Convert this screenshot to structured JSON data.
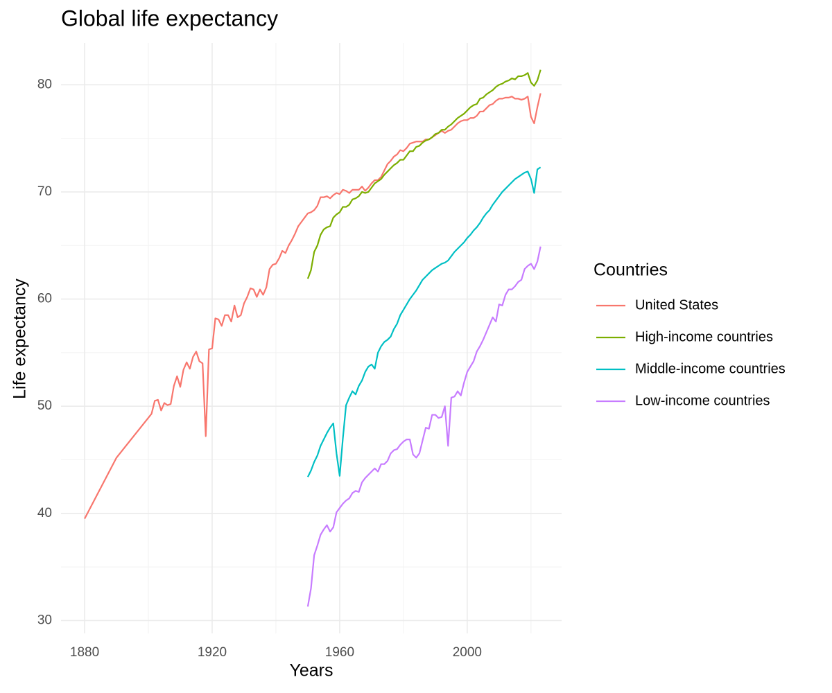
{
  "chart_data": {
    "type": "line",
    "title": "Global life expectancy",
    "x_label": "Years",
    "y_label": "Life expectancy",
    "legend_title": "Countries",
    "legend_position": "right",
    "grid": true,
    "xlim": [
      1872.6,
      2029.6
    ],
    "xticks": [
      1880,
      1920,
      1960,
      2000
    ],
    "x_minor_grid": [
      1900,
      1940,
      1980,
      2020
    ],
    "ylim": [
      28.8,
      83.9
    ],
    "yticks": [
      30,
      40,
      50,
      60,
      70,
      80
    ],
    "y_minor_grid": [
      35,
      45,
      55,
      65,
      75
    ],
    "series": [
      {
        "name": "United States",
        "color": "#F8766D",
        "x": [
          1880,
          1890,
          1901,
          1902,
          1903,
          1904,
          1905,
          1906,
          1907,
          1908,
          1909,
          1910,
          1911,
          1912,
          1913,
          1914,
          1915,
          1916,
          1917,
          1918,
          1919,
          1920,
          1921,
          1922,
          1923,
          1924,
          1925,
          1926,
          1927,
          1928,
          1929,
          1930,
          1931,
          1932,
          1933,
          1934,
          1935,
          1936,
          1937,
          1938,
          1939,
          1940,
          1941,
          1942,
          1943,
          1944,
          1945,
          1946,
          1947,
          1948,
          1949,
          1950,
          1951,
          1952,
          1953,
          1954,
          1955,
          1956,
          1957,
          1958,
          1959,
          1960,
          1961,
          1962,
          1963,
          1964,
          1965,
          1966,
          1967,
          1968,
          1969,
          1970,
          1971,
          1972,
          1973,
          1974,
          1975,
          1976,
          1977,
          1978,
          1979,
          1980,
          1981,
          1982,
          1983,
          1984,
          1985,
          1986,
          1987,
          1988,
          1989,
          1990,
          1991,
          1992,
          1993,
          1994,
          1995,
          1996,
          1997,
          1998,
          1999,
          2000,
          2001,
          2002,
          2003,
          2004,
          2005,
          2006,
          2007,
          2008,
          2009,
          2010,
          2011,
          2012,
          2013,
          2014,
          2015,
          2016,
          2017,
          2018,
          2019,
          2020,
          2021,
          2022,
          2023
        ],
        "values": [
          39.5,
          45.2,
          49.3,
          50.5,
          50.6,
          49.6,
          50.3,
          50.1,
          50.2,
          51.9,
          52.8,
          51.8,
          53.4,
          54.1,
          53.5,
          54.6,
          55.1,
          54.2,
          54.0,
          47.2,
          55.3,
          55.4,
          58.2,
          58.1,
          57.5,
          58.5,
          58.5,
          57.9,
          59.4,
          58.3,
          58.5,
          59.6,
          60.2,
          61.0,
          60.9,
          60.2,
          60.9,
          60.4,
          61.1,
          62.8,
          63.2,
          63.3,
          63.8,
          64.5,
          64.3,
          65.0,
          65.5,
          66.1,
          66.8,
          67.2,
          67.6,
          68.0,
          68.1,
          68.3,
          68.7,
          69.5,
          69.5,
          69.6,
          69.4,
          69.7,
          69.9,
          69.8,
          70.2,
          70.1,
          69.9,
          70.2,
          70.2,
          70.2,
          70.5,
          70.1,
          70.4,
          70.8,
          71.1,
          71.1,
          71.4,
          72.0,
          72.6,
          72.9,
          73.3,
          73.5,
          73.9,
          73.8,
          74.1,
          74.5,
          74.6,
          74.7,
          74.7,
          74.7,
          74.9,
          74.9,
          75.1,
          75.3,
          75.5,
          75.7,
          75.5,
          75.7,
          75.8,
          76.1,
          76.4,
          76.6,
          76.7,
          76.7,
          76.9,
          76.9,
          77.1,
          77.5,
          77.5,
          77.8,
          78.1,
          78.2,
          78.5,
          78.7,
          78.7,
          78.8,
          78.8,
          78.9,
          78.7,
          78.7,
          78.6,
          78.7,
          78.9,
          77.0,
          76.4,
          77.9,
          79.2
        ]
      },
      {
        "name": "High-income countries",
        "color": "#7CAE00",
        "x": [
          1950,
          1951,
          1952,
          1953,
          1954,
          1955,
          1956,
          1957,
          1958,
          1959,
          1960,
          1961,
          1962,
          1963,
          1964,
          1965,
          1966,
          1967,
          1968,
          1969,
          1970,
          1971,
          1972,
          1973,
          1974,
          1975,
          1976,
          1977,
          1978,
          1979,
          1980,
          1981,
          1982,
          1983,
          1984,
          1985,
          1986,
          1987,
          1988,
          1989,
          1990,
          1991,
          1992,
          1993,
          1994,
          1995,
          1996,
          1997,
          1998,
          1999,
          2000,
          2001,
          2002,
          2003,
          2004,
          2005,
          2006,
          2007,
          2008,
          2009,
          2010,
          2011,
          2012,
          2013,
          2014,
          2015,
          2016,
          2017,
          2018,
          2019,
          2020,
          2021,
          2022,
          2023
        ],
        "values": [
          61.9,
          62.7,
          64.4,
          65.0,
          66.0,
          66.5,
          66.7,
          66.8,
          67.6,
          67.9,
          68.1,
          68.6,
          68.6,
          68.8,
          69.3,
          69.4,
          69.6,
          70.0,
          69.9,
          70.0,
          70.4,
          70.8,
          71.0,
          71.2,
          71.6,
          71.9,
          72.2,
          72.5,
          72.7,
          73.0,
          73.0,
          73.4,
          73.8,
          73.8,
          74.2,
          74.3,
          74.6,
          74.8,
          74.9,
          75.1,
          75.4,
          75.5,
          75.8,
          75.8,
          76.1,
          76.3,
          76.6,
          76.9,
          77.1,
          77.3,
          77.6,
          77.9,
          78.1,
          78.2,
          78.7,
          78.8,
          79.1,
          79.3,
          79.5,
          79.8,
          80.0,
          80.1,
          80.3,
          80.4,
          80.6,
          80.5,
          80.8,
          80.8,
          80.9,
          81.1,
          80.2,
          79.9,
          80.4,
          81.4
        ]
      },
      {
        "name": "Middle-income countries",
        "color": "#00BFC4",
        "x": [
          1950,
          1951,
          1952,
          1953,
          1954,
          1955,
          1956,
          1957,
          1958,
          1959,
          1960,
          1961,
          1962,
          1963,
          1964,
          1965,
          1966,
          1967,
          1968,
          1969,
          1970,
          1971,
          1972,
          1973,
          1974,
          1975,
          1976,
          1977,
          1978,
          1979,
          1980,
          1981,
          1982,
          1983,
          1984,
          1985,
          1986,
          1987,
          1988,
          1989,
          1990,
          1991,
          1992,
          1993,
          1994,
          1995,
          1996,
          1997,
          1998,
          1999,
          2000,
          2001,
          2002,
          2003,
          2004,
          2005,
          2006,
          2007,
          2008,
          2009,
          2010,
          2011,
          2012,
          2013,
          2014,
          2015,
          2016,
          2017,
          2018,
          2019,
          2020,
          2021,
          2022,
          2023
        ],
        "values": [
          43.4,
          44.0,
          44.8,
          45.4,
          46.3,
          46.9,
          47.5,
          48.0,
          48.4,
          45.6,
          43.5,
          47.0,
          50.1,
          50.8,
          51.4,
          51.1,
          51.9,
          52.4,
          53.2,
          53.7,
          53.9,
          53.5,
          55.0,
          55.6,
          56.0,
          56.2,
          56.5,
          57.2,
          57.7,
          58.5,
          59.0,
          59.5,
          60.0,
          60.4,
          60.8,
          61.3,
          61.8,
          62.1,
          62.4,
          62.7,
          62.9,
          63.1,
          63.3,
          63.4,
          63.6,
          64.0,
          64.4,
          64.7,
          65.0,
          65.3,
          65.7,
          66.0,
          66.4,
          66.7,
          67.1,
          67.6,
          68.0,
          68.3,
          68.8,
          69.2,
          69.6,
          70.0,
          70.3,
          70.6,
          70.9,
          71.2,
          71.4,
          71.6,
          71.8,
          71.9,
          71.2,
          69.9,
          72.1,
          72.3
        ]
      },
      {
        "name": "Low-income countries",
        "color": "#C77CFF",
        "x": [
          1950,
          1951,
          1952,
          1953,
          1954,
          1955,
          1956,
          1957,
          1958,
          1959,
          1960,
          1961,
          1962,
          1963,
          1964,
          1965,
          1966,
          1967,
          1968,
          1969,
          1970,
          1971,
          1972,
          1973,
          1974,
          1975,
          1976,
          1977,
          1978,
          1979,
          1980,
          1981,
          1982,
          1983,
          1984,
          1985,
          1986,
          1987,
          1988,
          1989,
          1990,
          1991,
          1992,
          1993,
          1994,
          1995,
          1996,
          1997,
          1998,
          1999,
          2000,
          2001,
          2002,
          2003,
          2004,
          2005,
          2006,
          2007,
          2008,
          2009,
          2010,
          2011,
          2012,
          2013,
          2014,
          2015,
          2016,
          2017,
          2018,
          2019,
          2020,
          2021,
          2022,
          2023
        ],
        "values": [
          31.3,
          33.0,
          36.1,
          37.0,
          38.0,
          38.5,
          38.9,
          38.3,
          38.7,
          40.1,
          40.5,
          40.9,
          41.2,
          41.4,
          41.9,
          42.1,
          42.0,
          42.9,
          43.3,
          43.6,
          43.9,
          44.2,
          43.9,
          44.6,
          44.6,
          44.9,
          45.6,
          45.9,
          46.0,
          46.4,
          46.7,
          46.9,
          46.9,
          45.5,
          45.2,
          45.6,
          46.8,
          48.0,
          47.9,
          49.2,
          49.2,
          48.9,
          49.0,
          50.0,
          46.3,
          50.8,
          50.9,
          51.4,
          51.0,
          52.2,
          53.2,
          53.7,
          54.2,
          55.1,
          55.6,
          56.2,
          56.9,
          57.6,
          58.3,
          57.9,
          59.5,
          59.4,
          60.4,
          60.9,
          60.9,
          61.2,
          61.6,
          61.8,
          62.8,
          63.1,
          63.3,
          62.8,
          63.5,
          64.9
        ]
      }
    ]
  }
}
